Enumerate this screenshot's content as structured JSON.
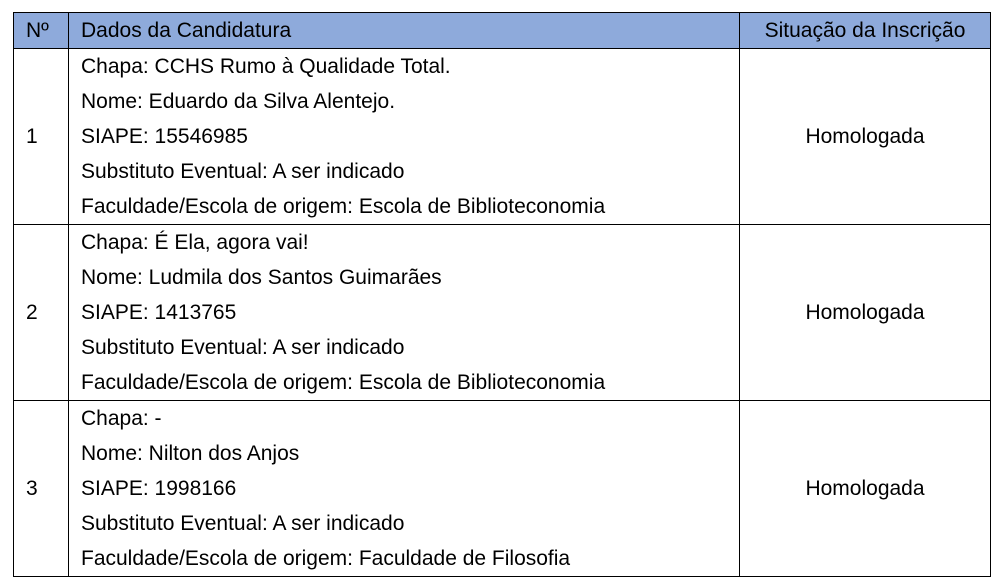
{
  "header": {
    "num": "Nº",
    "dados": "Dados da Candidatura",
    "situacao": "Situação da Inscrição"
  },
  "rows": [
    {
      "num": "1",
      "lines": [
        "Chapa: CCHS Rumo à Qualidade Total.",
        "Nome: Eduardo da Silva Alentejo.",
        "SIAPE: 15546985",
        "Substituto Eventual: A ser indicado",
        "Faculdade/Escola de origem: Escola de Biblioteconomia"
      ],
      "situacao": "Homologada"
    },
    {
      "num": "2",
      "lines": [
        "Chapa: É Ela, agora vai!",
        "Nome: Ludmila dos Santos Guimarães",
        "SIAPE: 1413765",
        "Substituto Eventual: A ser indicado",
        "Faculdade/Escola de origem: Escola de Biblioteconomia"
      ],
      "situacao": "Homologada"
    },
    {
      "num": "3",
      "lines": [
        "Chapa: -",
        "Nome: Nilton dos Anjos",
        "SIAPE: 1998166",
        "Substituto Eventual: A ser indicado",
        "Faculdade/Escola de origem: Faculdade de Filosofia"
      ],
      "situacao": "Homologada"
    }
  ],
  "colors": {
    "header_bg": "#8eaadb"
  }
}
